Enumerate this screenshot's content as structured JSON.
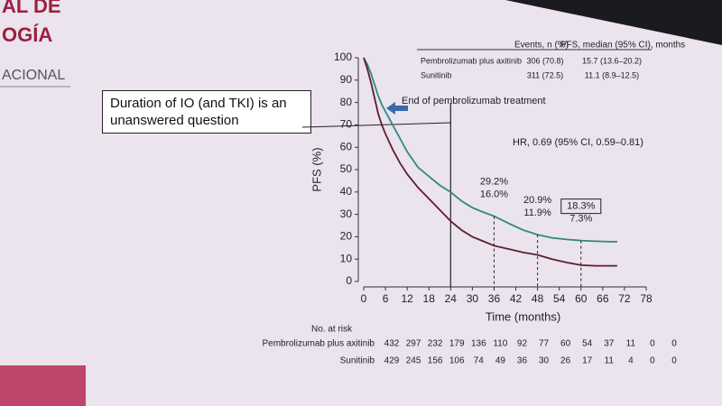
{
  "slide": {
    "fragments": [
      "AL DE",
      "OGÍA",
      "ACIONAL"
    ]
  },
  "chart_data": {
    "type": "line",
    "xlabel": "Time (months)",
    "ylabel": "PFS (%)",
    "xlim": [
      0,
      78
    ],
    "ylim": [
      0,
      100
    ],
    "xticks": [
      0,
      6,
      12,
      18,
      24,
      30,
      36,
      42,
      48,
      54,
      60,
      66,
      72,
      78
    ],
    "yticks": [
      0,
      10,
      20,
      30,
      40,
      50,
      60,
      70,
      80,
      90,
      100
    ],
    "series": [
      {
        "name": "Pembrolizumab plus axitinib",
        "color": "#2f8a7c",
        "x": [
          0,
          1,
          2,
          3,
          4,
          5,
          6,
          8,
          10,
          12,
          15,
          18,
          21,
          24,
          27,
          30,
          33,
          36,
          40,
          44,
          48,
          52,
          56,
          60,
          64,
          68,
          70
        ],
        "values": [
          100,
          97,
          93,
          88,
          83,
          79,
          76,
          70,
          64,
          58,
          51,
          47,
          43,
          40,
          36,
          33,
          31,
          29.2,
          26,
          23,
          20.9,
          19.5,
          18.8,
          18.3,
          18,
          17.8,
          17.8
        ]
      },
      {
        "name": "Sunitinib",
        "color": "#5e1f2c",
        "x": [
          0,
          1,
          2,
          3,
          4,
          5,
          6,
          8,
          10,
          12,
          15,
          18,
          21,
          24,
          27,
          30,
          33,
          36,
          40,
          44,
          48,
          52,
          56,
          60,
          64,
          68,
          70
        ],
        "values": [
          100,
          95,
          89,
          82,
          75,
          70,
          66,
          59,
          53,
          48,
          42,
          37,
          32,
          27,
          23,
          20,
          18,
          16.0,
          14.5,
          13,
          11.9,
          10,
          8.5,
          7.3,
          7,
          7,
          7
        ]
      }
    ],
    "landmarks": [
      {
        "x": 36,
        "values": [
          29.2,
          16.0
        ],
        "labels": [
          "29.2%",
          "16.0%"
        ]
      },
      {
        "x": 48,
        "values": [
          20.9,
          11.9
        ],
        "labels": [
          "20.9%",
          "11.9%"
        ]
      },
      {
        "x": 60,
        "values": [
          18.3,
          7.3
        ],
        "labels": [
          "18.3%",
          "7.3%"
        ]
      }
    ],
    "treatment_end": {
      "text": "End of pembrolizumab treatment",
      "x": 24
    },
    "hr_text": "HR, 0.69 (95% CI, 0.59–0.81)",
    "callout": "Duration of IO (and TKI) is an unanswered question",
    "legend_table": {
      "headers": [
        "Events, n (%)",
        "PFS, median (95% CI), months"
      ],
      "rows": [
        {
          "events": "306 (70.8)",
          "pfs": "15.7 (13.6–20.2)"
        },
        {
          "events": "311 (72.5)",
          "pfs": "11.1 (8.9–12.5)"
        }
      ]
    },
    "risk_table": {
      "title": "No. at risk",
      "counts": [
        [
          432,
          297,
          232,
          179,
          136,
          110,
          92,
          77,
          60,
          54,
          37,
          11,
          0,
          0
        ],
        [
          429,
          245,
          156,
          106,
          74,
          49,
          36,
          30,
          26,
          17,
          11,
          4,
          0,
          0
        ]
      ]
    }
  }
}
